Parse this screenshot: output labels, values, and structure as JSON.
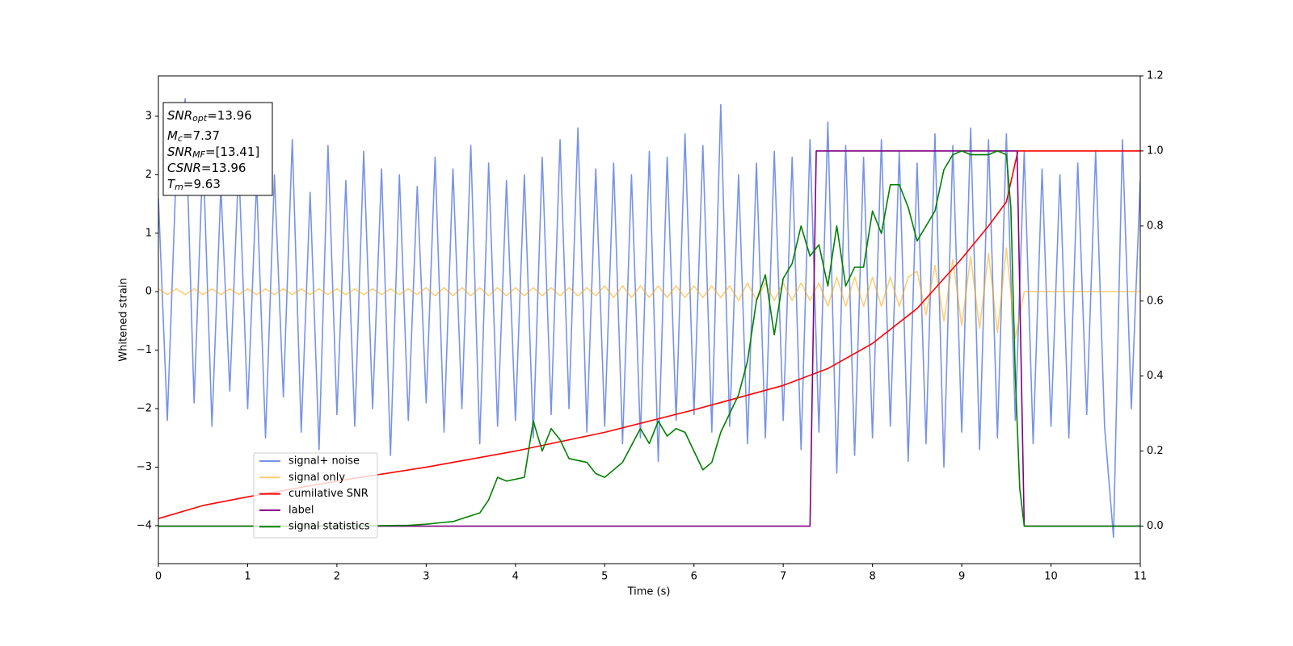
{
  "chart_data": {
    "type": "line",
    "xlabel": "Time (s)",
    "ylabel": "Whitened strain",
    "xlim": [
      0,
      11
    ],
    "xticks": [
      0,
      1,
      2,
      3,
      4,
      5,
      6,
      7,
      8,
      9,
      10,
      11
    ],
    "ylim": [
      -4.65,
      3.69
    ],
    "yticks": [
      {
        "value": -4,
        "label": "−4"
      },
      {
        "value": -3,
        "label": "−3"
      },
      {
        "value": -2,
        "label": "−2"
      },
      {
        "value": -1,
        "label": "−1"
      },
      0,
      1,
      2,
      3
    ],
    "y2lim": [
      -0.1,
      1.2
    ],
    "y2ticks": [
      {
        "value": 0,
        "label": "0.0"
      },
      0.2,
      0.4,
      0.6,
      0.8,
      {
        "value": 1,
        "label": "1.0"
      },
      1.2
    ],
    "legend_loc": "lower left",
    "annotation_lines": [
      {
        "var": "SNR",
        "sub": "opt",
        "text": "=13.96"
      },
      {
        "var": "M",
        "sub": "c",
        "text": "=7.37"
      },
      {
        "var": "SNR",
        "sub": "MF",
        "text": "=[13.41]"
      },
      {
        "var": "CSNR",
        "text": "=13.96"
      },
      {
        "var": "T",
        "sub": "m",
        "text": "=9.63"
      }
    ],
    "series": [
      {
        "name": "signal+ noise",
        "color": "#7793e8",
        "x": [
          0,
          0.1,
          0.2,
          0.3,
          0.4,
          0.5,
          0.6,
          0.7,
          0.8,
          0.9,
          1,
          1.1,
          1.2,
          1.3,
          1.4,
          1.5,
          1.6,
          1.7,
          1.8,
          1.9,
          2,
          2.1,
          2.2,
          2.3,
          2.4,
          2.5,
          2.6,
          2.7,
          2.8,
          2.9,
          3,
          3.1,
          3.2,
          3.3,
          3.4,
          3.5,
          3.6,
          3.7,
          3.8,
          3.9,
          4,
          4.1,
          4.2,
          4.3,
          4.4,
          4.5,
          4.6,
          4.7,
          4.8,
          4.9,
          5,
          5.1,
          5.2,
          5.3,
          5.4,
          5.5,
          5.6,
          5.7,
          5.8,
          5.9,
          6,
          6.1,
          6.2,
          6.3,
          6.4,
          6.5,
          6.6,
          6.7,
          6.8,
          6.9,
          7,
          7.1,
          7.2,
          7.3,
          7.4,
          7.5,
          7.6,
          7.7,
          7.8,
          7.9,
          8,
          8.1,
          8.2,
          8.3,
          8.4,
          8.5,
          8.6,
          8.7,
          8.8,
          8.9,
          9,
          9.1,
          9.2,
          9.3,
          9.4,
          9.5,
          9.6,
          9.7,
          9.8,
          9.9,
          10,
          10.1,
          10.2,
          10.3,
          10.4,
          10.5,
          10.6,
          10.7,
          10.8,
          10.9,
          11
        ],
        "values": [
          1.6,
          -2.2,
          2.1,
          3.3,
          -1.9,
          2.4,
          -2.3,
          1.8,
          -1.7,
          2.2,
          -2.0,
          1.9,
          -2.5,
          2.0,
          -1.8,
          2.6,
          -2.4,
          1.7,
          -2.7,
          2.5,
          -2.1,
          1.9,
          -2.3,
          2.4,
          -2.0,
          2.1,
          -2.8,
          2.0,
          -2.2,
          1.8,
          -1.9,
          2.3,
          -2.4,
          2.1,
          -2.0,
          2.5,
          -2.6,
          2.2,
          -2.3,
          1.9,
          -2.2,
          2.0,
          -2.5,
          2.3,
          -2.1,
          2.6,
          -2.0,
          2.8,
          -2.4,
          2.1,
          -2.3,
          2.2,
          -2.6,
          2.0,
          -2.5,
          2.4,
          -2.9,
          2.3,
          -2.2,
          2.7,
          -2.1,
          2.5,
          -2.4,
          3.2,
          -2.3,
          2.0,
          -2.6,
          2.2,
          -2.5,
          2.4,
          -2.2,
          2.3,
          -2.7,
          2.6,
          -2.4,
          2.9,
          -3.1,
          2.5,
          -2.8,
          2.3,
          -2.5,
          2.6,
          -2.3,
          2.4,
          -2.9,
          2.2,
          -2.6,
          2.7,
          -3.0,
          2.5,
          -2.4,
          2.8,
          -2.7,
          2.6,
          -2.5,
          2.7,
          -2.2,
          2.4,
          -2.6,
          2.1,
          -2.3,
          2.0,
          -2.5,
          2.2,
          -2.1,
          2.4,
          -2.3,
          -4.2,
          2.6,
          -2.0,
          1.9
        ]
      },
      {
        "name": "signal only",
        "color": "#ffa500",
        "x": [
          0,
          0.1,
          0.2,
          0.3,
          0.4,
          0.5,
          0.6,
          0.7,
          0.8,
          0.9,
          1,
          1.1,
          1.2,
          1.3,
          1.4,
          1.5,
          1.6,
          1.7,
          1.8,
          1.9,
          2,
          2.1,
          2.2,
          2.3,
          2.4,
          2.5,
          2.6,
          2.7,
          2.8,
          2.9,
          3,
          3.1,
          3.2,
          3.3,
          3.4,
          3.5,
          3.6,
          3.7,
          3.8,
          3.9,
          4,
          4.1,
          4.2,
          4.3,
          4.4,
          4.5,
          4.6,
          4.7,
          4.8,
          4.9,
          5,
          5.1,
          5.2,
          5.3,
          5.4,
          5.5,
          5.6,
          5.7,
          5.8,
          5.9,
          6,
          6.1,
          6.2,
          6.3,
          6.4,
          6.5,
          6.6,
          6.7,
          6.8,
          6.9,
          7,
          7.1,
          7.2,
          7.3,
          7.4,
          7.5,
          7.6,
          7.7,
          7.8,
          7.9,
          8,
          8.1,
          8.2,
          8.3,
          8.4,
          8.5,
          8.6,
          8.7,
          8.8,
          8.9,
          9,
          9.1,
          9.2,
          9.3,
          9.4,
          9.5,
          9.6,
          9.7,
          9.8,
          9.9,
          10,
          10.1,
          10.2,
          10.3,
          10.4,
          10.5,
          10.6,
          10.7,
          10.8,
          10.9,
          11
        ],
        "values": [
          0.05,
          -0.05,
          0.05,
          -0.05,
          0.05,
          -0.05,
          0.05,
          -0.05,
          0.05,
          -0.05,
          0.05,
          -0.05,
          0.05,
          -0.05,
          0.05,
          -0.05,
          0.05,
          -0.05,
          0.05,
          -0.05,
          0.05,
          -0.05,
          0.05,
          -0.05,
          0.05,
          -0.05,
          0.05,
          -0.05,
          0.05,
          -0.05,
          0.07,
          -0.07,
          0.07,
          -0.07,
          0.07,
          -0.07,
          0.07,
          -0.07,
          0.07,
          -0.07,
          0.07,
          -0.07,
          0.07,
          -0.07,
          0.07,
          -0.07,
          0.07,
          -0.07,
          0.07,
          -0.07,
          0.1,
          -0.1,
          0.1,
          -0.1,
          0.1,
          -0.1,
          0.1,
          -0.1,
          0.1,
          -0.1,
          0.1,
          -0.1,
          0.1,
          -0.1,
          0.1,
          -0.15,
          0.15,
          -0.15,
          0.15,
          -0.15,
          0.15,
          -0.15,
          0.15,
          -0.15,
          0.15,
          -0.25,
          0.25,
          -0.25,
          0.25,
          -0.25,
          0.25,
          -0.25,
          0.25,
          -0.25,
          0.25,
          0.35,
          -0.4,
          0.45,
          -0.5,
          0.55,
          -0.58,
          0.6,
          -0.63,
          0.66,
          -0.7,
          0.75,
          -0.8,
          0,
          0,
          0,
          0,
          0,
          0,
          0,
          0,
          0,
          0,
          0,
          0,
          0,
          0
        ]
      },
      {
        "name": "cumilative SNR",
        "color": "#ff0000",
        "axis": "y2",
        "x": [
          0,
          0.5,
          1,
          2,
          3,
          4,
          5,
          6,
          7,
          7.5,
          8,
          8.5,
          9,
          9.3,
          9.5,
          9.63,
          11
        ],
        "values": [
          0.02,
          0.055,
          0.078,
          0.12,
          0.157,
          0.2,
          0.25,
          0.31,
          0.375,
          0.42,
          0.487,
          0.58,
          0.713,
          0.8,
          0.864,
          1.0,
          1.0
        ]
      },
      {
        "name": "label",
        "color": "#800080",
        "axis": "y2",
        "x": [
          0,
          7.3,
          7.37,
          9.62,
          9.7,
          11
        ],
        "values": [
          0,
          0,
          1,
          1,
          0,
          0
        ]
      },
      {
        "name": "signal statistics",
        "color": "#008000",
        "axis": "y2",
        "x": [
          0,
          1,
          2,
          2.8,
          3.0,
          3.2,
          3.3,
          3.4,
          3.6,
          3.7,
          3.8,
          3.9,
          4.1,
          4.2,
          4.3,
          4.4,
          4.5,
          4.6,
          4.8,
          4.9,
          5.0,
          5.2,
          5.4,
          5.5,
          5.6,
          5.7,
          5.8,
          5.9,
          6.0,
          6.1,
          6.2,
          6.3,
          6.4,
          6.5,
          6.6,
          6.7,
          6.8,
          6.9,
          7.0,
          7.1,
          7.2,
          7.3,
          7.4,
          7.5,
          7.6,
          7.7,
          7.8,
          7.9,
          8.0,
          8.1,
          8.2,
          8.3,
          8.4,
          8.5,
          8.6,
          8.7,
          8.8,
          8.9,
          9.0,
          9.1,
          9.2,
          9.3,
          9.4,
          9.5,
          9.55,
          9.6,
          9.65,
          9.7,
          11
        ],
        "values": [
          0,
          0,
          0,
          0.002,
          0.005,
          0.01,
          0.012,
          0.02,
          0.035,
          0.07,
          0.13,
          0.12,
          0.13,
          0.28,
          0.2,
          0.26,
          0.23,
          0.18,
          0.17,
          0.14,
          0.13,
          0.17,
          0.26,
          0.22,
          0.28,
          0.24,
          0.26,
          0.25,
          0.2,
          0.15,
          0.17,
          0.25,
          0.3,
          0.35,
          0.44,
          0.6,
          0.67,
          0.51,
          0.66,
          0.7,
          0.8,
          0.72,
          0.75,
          0.64,
          0.8,
          0.64,
          0.69,
          0.69,
          0.84,
          0.78,
          0.91,
          0.91,
          0.85,
          0.76,
          0.8,
          0.84,
          0.95,
          0.99,
          1.0,
          0.99,
          0.99,
          0.99,
          1.0,
          0.99,
          0.85,
          0.4,
          0.1,
          0.0,
          0.0
        ]
      }
    ]
  }
}
